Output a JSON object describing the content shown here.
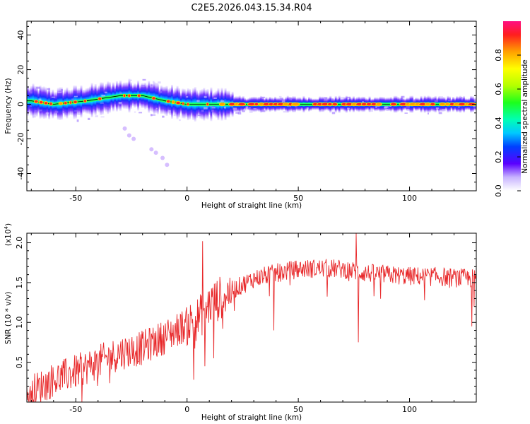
{
  "title": "C2E5.2026.043.15.34.R04",
  "colors": {
    "signal": "#e8282a",
    "frame": "#000000"
  },
  "chart_data": [
    {
      "type": "heatmap",
      "xlabel": "Height of straight line (km)",
      "ylabel": "Frequency (Hz)",
      "xlim": [
        -72,
        130
      ],
      "ylim": [
        -50,
        48
      ],
      "xticks": [
        -50,
        0,
        50,
        100
      ],
      "yticks": [
        -40,
        -20,
        0,
        20,
        40
      ],
      "ridge_frequency": [
        {
          "x": -70,
          "f": 2
        },
        {
          "x": -60,
          "f": 0
        },
        {
          "x": -45,
          "f": 2
        },
        {
          "x": -30,
          "f": 5
        },
        {
          "x": -20,
          "f": 5
        },
        {
          "x": -10,
          "f": 2
        },
        {
          "x": 0,
          "f": 0
        },
        {
          "x": 15,
          "f": 0
        },
        {
          "x": 130,
          "f": 0
        }
      ],
      "secondary_component": [
        {
          "x": -28,
          "f": -14
        },
        {
          "x": -26,
          "f": -18
        },
        {
          "x": -24,
          "f": -20
        },
        {
          "x": -16,
          "f": -26
        },
        {
          "x": -14,
          "f": -28
        },
        {
          "x": -11,
          "f": -31
        },
        {
          "x": -9,
          "f": -35
        }
      ],
      "colorbar": {
        "label": "Normalized spectral amplitude",
        "range": [
          0,
          1
        ],
        "ticks": [
          "0.0",
          "0.2",
          "0.4",
          "0.6",
          "0.8"
        ]
      }
    },
    {
      "type": "line",
      "xlabel": "Height of straight line (km)",
      "ylabel": "SNR (10 * v/v)",
      "multiplier": "(x10",
      "multiplier_exp": "4",
      "xlim": [
        -72,
        130
      ],
      "ylim": [
        0.0,
        2.12
      ],
      "xticks": [
        -50,
        0,
        50,
        100
      ],
      "yticks": [
        "0.5",
        "1.0",
        "1.5",
        "2.0"
      ],
      "trend": [
        {
          "x": -72,
          "y": 0.1
        },
        {
          "x": -60,
          "y": 0.28
        },
        {
          "x": -50,
          "y": 0.38
        },
        {
          "x": -40,
          "y": 0.5
        },
        {
          "x": -30,
          "y": 0.62
        },
        {
          "x": -20,
          "y": 0.68
        },
        {
          "x": -10,
          "y": 0.82
        },
        {
          "x": 0,
          "y": 0.98
        },
        {
          "x": 5,
          "y": 1.05
        },
        {
          "x": 10,
          "y": 1.22
        },
        {
          "x": 20,
          "y": 1.4
        },
        {
          "x": 30,
          "y": 1.55
        },
        {
          "x": 40,
          "y": 1.62
        },
        {
          "x": 50,
          "y": 1.67
        },
        {
          "x": 60,
          "y": 1.68
        },
        {
          "x": 70,
          "y": 1.67
        },
        {
          "x": 80,
          "y": 1.62
        },
        {
          "x": 90,
          "y": 1.6
        },
        {
          "x": 100,
          "y": 1.58
        },
        {
          "x": 110,
          "y": 1.58
        },
        {
          "x": 120,
          "y": 1.56
        },
        {
          "x": 130,
          "y": 1.55
        }
      ],
      "spikes": [
        {
          "x": 7,
          "y": 2.02
        },
        {
          "x": 76,
          "y": 2.12
        },
        {
          "x": 77,
          "y": 0.75
        },
        {
          "x": 3,
          "y": 0.28
        },
        {
          "x": 8,
          "y": 0.45
        },
        {
          "x": 12,
          "y": 0.55
        },
        {
          "x": 39,
          "y": 0.9
        },
        {
          "x": 128,
          "y": 0.95
        },
        {
          "x": 129,
          "y": 1.2
        }
      ]
    }
  ]
}
